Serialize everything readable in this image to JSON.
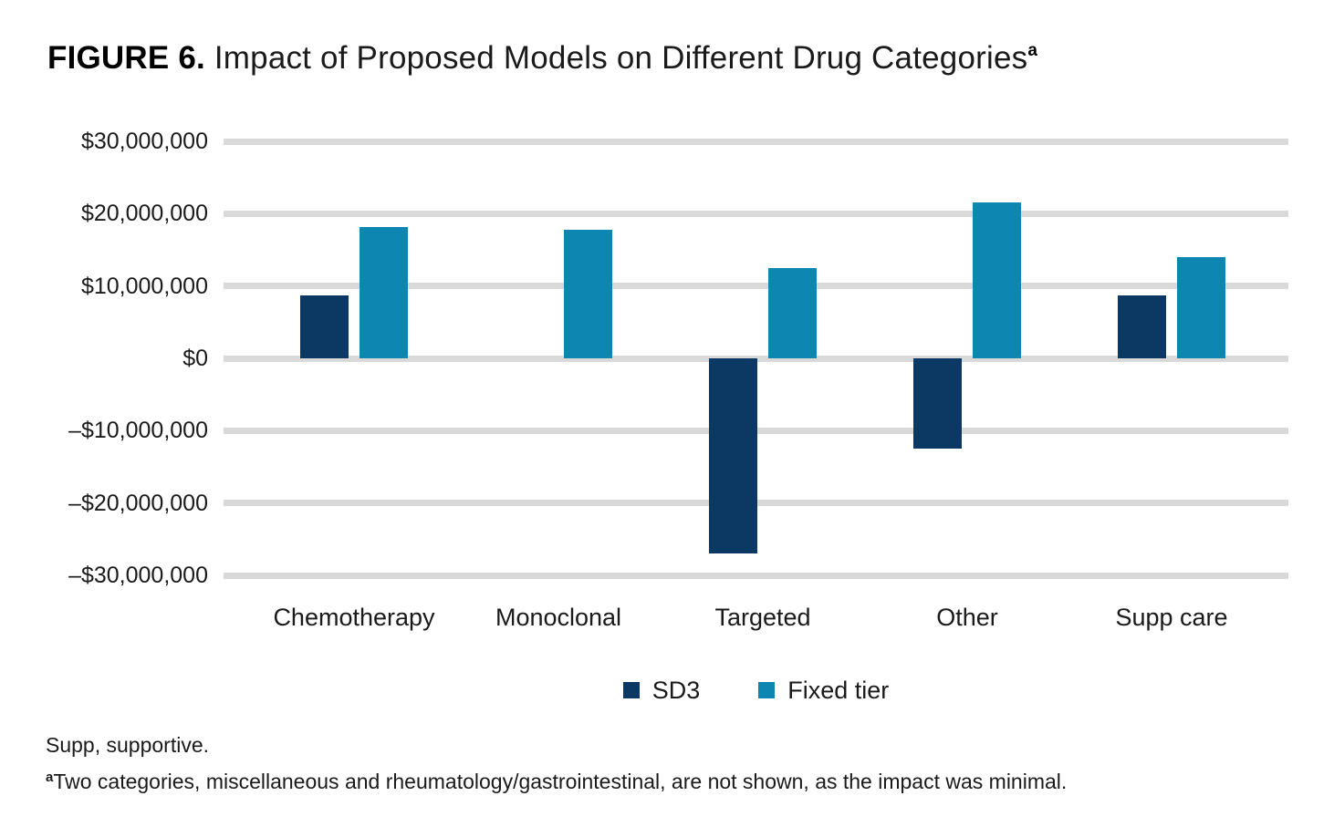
{
  "figure": {
    "label": "FIGURE 6.",
    "title": " Impact of Proposed Models on Different Drug Categories",
    "superscript": "a"
  },
  "chart_data": {
    "type": "bar",
    "categories": [
      "Chemotherapy",
      "Monoclonal",
      "Targeted",
      "Other",
      "Supp care"
    ],
    "series": [
      {
        "name": "SD3",
        "color": "#0c3963",
        "values": [
          8700000,
          0,
          -27000000,
          -12500000,
          8700000
        ]
      },
      {
        "name": "Fixed tier",
        "color": "#0d87b2",
        "values": [
          18100000,
          17800000,
          12500000,
          21600000,
          14000000
        ]
      }
    ],
    "title": "Impact of Proposed Models on Different Drug Categories",
    "xlabel": "",
    "ylabel": "",
    "ylim": [
      -30000000,
      30000000
    ],
    "ytick_step": 10000000,
    "ytick_labels": [
      "$30,000,000",
      "$20,000,000",
      "$10,000,000",
      "$0",
      "–$10,000,000",
      "–$20,000,000",
      "–$30,000,000"
    ],
    "grid": true,
    "gridline_color": "#d9d9d9",
    "legend_position": "bottom"
  },
  "footnotes": {
    "line1": "Supp, supportive.",
    "line2_superscript": "a",
    "line2": "Two categories, miscellaneous and rheumatology/gastrointestinal, are not shown, as the impact was minimal."
  }
}
